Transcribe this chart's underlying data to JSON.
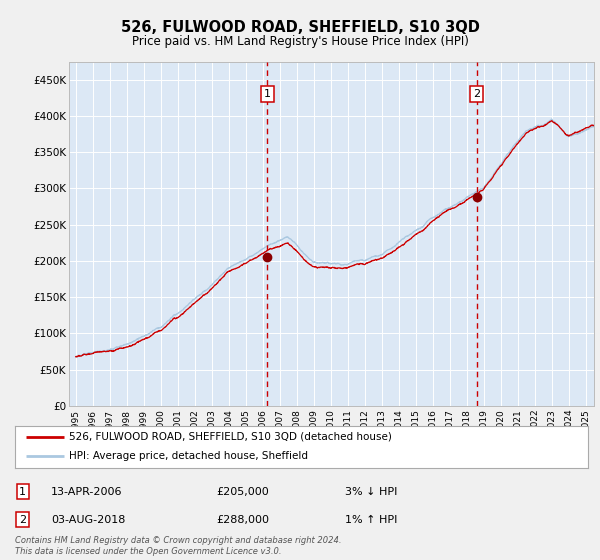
{
  "title": "526, FULWOOD ROAD, SHEFFIELD, S10 3QD",
  "subtitle": "Price paid vs. HM Land Registry's House Price Index (HPI)",
  "legend_line1": "526, FULWOOD ROAD, SHEFFIELD, S10 3QD (detached house)",
  "legend_line2": "HPI: Average price, detached house, Sheffield",
  "footnote": "Contains HM Land Registry data © Crown copyright and database right 2024.\nThis data is licensed under the Open Government Licence v3.0.",
  "sale1_date": "13-APR-2006",
  "sale1_price": "£205,000",
  "sale1_hpi": "3% ↓ HPI",
  "sale2_date": "03-AUG-2018",
  "sale2_price": "£288,000",
  "sale2_hpi": "1% ↑ HPI",
  "sale1_x": 2006.28,
  "sale1_y": 205000,
  "sale2_x": 2018.59,
  "sale2_y": 288000,
  "fig_bg_color": "#f0f0f0",
  "plot_bg_color": "#dce8f5",
  "red_line_color": "#cc0000",
  "blue_line_color": "#aac8e0",
  "grid_color": "#ffffff",
  "dashed_color": "#cc0000",
  "marker_color": "#8b0000",
  "ylim": [
    0,
    475000
  ],
  "xlim_start": 1994.6,
  "xlim_end": 2025.5,
  "yticks": [
    0,
    50000,
    100000,
    150000,
    200000,
    250000,
    300000,
    350000,
    400000,
    450000
  ],
  "ytick_labels": [
    "£0",
    "£50K",
    "£100K",
    "£150K",
    "£200K",
    "£250K",
    "£300K",
    "£350K",
    "£400K",
    "£450K"
  ]
}
